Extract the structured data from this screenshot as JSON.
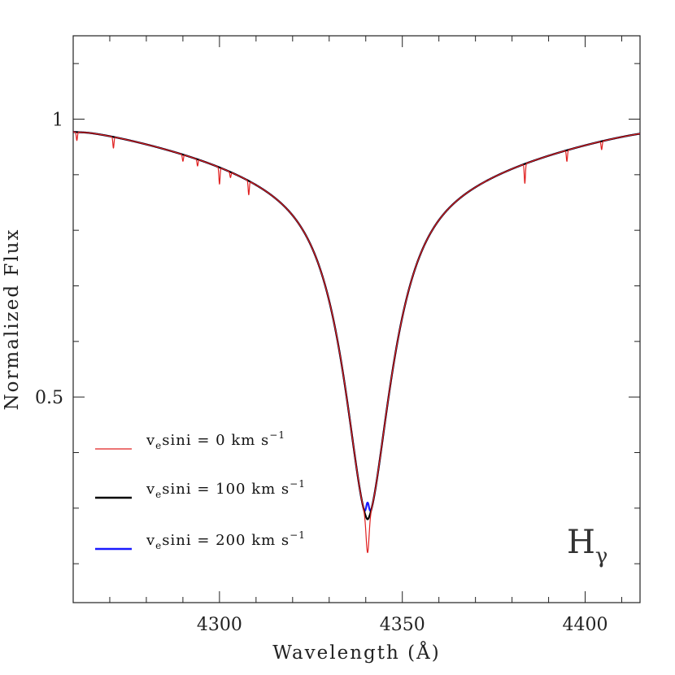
{
  "chart_data": {
    "type": "line",
    "xlabel": "Wavelength (Å)",
    "ylabel": "Normalized Flux",
    "xlim": [
      4260,
      4415
    ],
    "ylim": [
      0.13,
      1.15
    ],
    "x_ticks": [
      4300,
      4350,
      4400
    ],
    "x_tick_labels": [
      "4300",
      "4350",
      "4400"
    ],
    "y_ticks": [
      0.5,
      1
    ],
    "y_tick_labels": [
      "0.5",
      "1"
    ],
    "grid": false,
    "legend_position": "bottom-left",
    "annotation": {
      "main": "H",
      "sub": "γ"
    },
    "line_center": 4340.5,
    "series": [
      {
        "name": "vesini = 0 km s-1",
        "label_parts": [
          "v",
          "e",
          "sini = 0 km s",
          "−1"
        ],
        "color": "#e02020",
        "min_flux": 0.22,
        "weak_lines": [
          {
            "x": 4261.0,
            "depth": 0.015
          },
          {
            "x": 4271.0,
            "depth": 0.02
          },
          {
            "x": 4290.0,
            "depth": 0.012
          },
          {
            "x": 4294.0,
            "depth": 0.012
          },
          {
            "x": 4300.0,
            "depth": 0.03
          },
          {
            "x": 4303.0,
            "depth": 0.01
          },
          {
            "x": 4308.0,
            "depth": 0.025
          },
          {
            "x": 4383.5,
            "depth": 0.035
          },
          {
            "x": 4395.0,
            "depth": 0.02
          },
          {
            "x": 4404.5,
            "depth": 0.015
          }
        ]
      },
      {
        "name": "vesini = 100 km s-1",
        "label_parts": [
          "v",
          "e",
          "sini = 100 km s",
          "−1"
        ],
        "color": "#000000",
        "min_flux": 0.28
      },
      {
        "name": "vesini = 200 km s-1",
        "label_parts": [
          "v",
          "e",
          "sini = 200 km s",
          "−1"
        ],
        "color": "#1a1aff",
        "min_flux": 0.31
      }
    ]
  }
}
